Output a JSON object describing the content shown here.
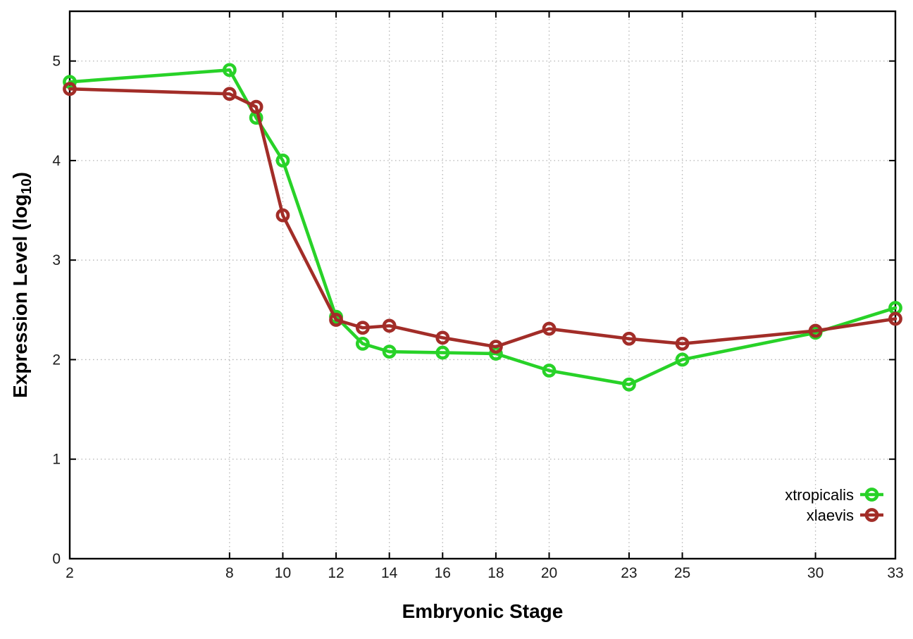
{
  "chart_data": {
    "type": "line",
    "title": "",
    "xlabel": "Embryonic Stage",
    "ylabel": {
      "prefix": "Expression Level (log",
      "sub": "10",
      "suffix": ")"
    },
    "x": [
      2,
      8,
      9,
      10,
      12,
      13,
      14,
      16,
      18,
      20,
      23,
      25,
      30,
      33
    ],
    "series": [
      {
        "name": "xtropicalis",
        "color": "#28d228",
        "values": [
          4.79,
          4.91,
          4.43,
          4.0,
          2.43,
          2.16,
          2.08,
          2.07,
          2.06,
          1.89,
          1.75,
          2.0,
          2.27,
          2.52
        ]
      },
      {
        "name": "xlaevis",
        "color": "#a22d28",
        "values": [
          4.72,
          4.67,
          4.54,
          3.45,
          2.4,
          2.32,
          2.34,
          2.22,
          2.13,
          2.31,
          2.21,
          2.16,
          2.29,
          2.41
        ]
      }
    ],
    "xticks": [
      2,
      8,
      10,
      12,
      14,
      16,
      18,
      20,
      23,
      25,
      30,
      33
    ],
    "yticks": [
      0,
      1,
      2,
      3,
      4,
      5
    ],
    "xlim": [
      2,
      33
    ],
    "ylim": [
      0,
      5.5
    ],
    "grid": true,
    "grid_color": "#b5b5b5",
    "axis_color": "#000000",
    "background": "#ffffff",
    "marker": "open-circle",
    "legend_position": "bottom-right"
  }
}
